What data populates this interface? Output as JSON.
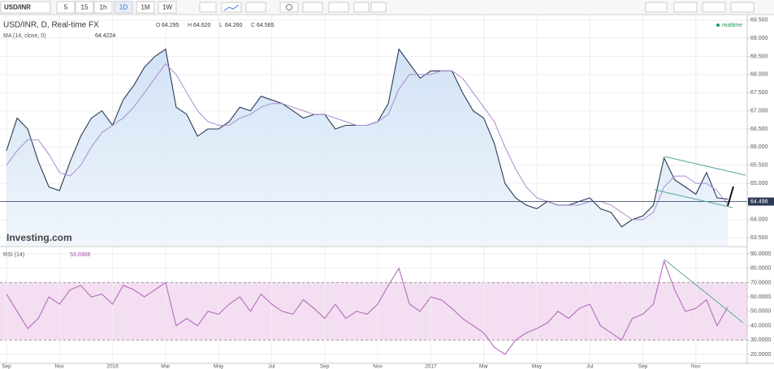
{
  "toolbar": {
    "symbol": "USD/INR",
    "intervals": [
      "5",
      "15",
      "1h",
      "1D",
      "1M",
      "1W"
    ],
    "active_interval": 3
  },
  "status": "realtime",
  "watermark": "Investing.com",
  "chart_data": [
    {
      "type": "line",
      "title": "USD/INR, D, Real-time FX",
      "ohlc": [
        {
          "label": "O",
          "value": 64.295,
          "value_label": "64.295"
        },
        {
          "label": "H",
          "value": 64.62,
          "value_label": "64.620"
        },
        {
          "label": "L",
          "value": 64.26,
          "value_label": "64.260"
        },
        {
          "label": "C",
          "value": 64.565,
          "value_label": "64.565"
        }
      ],
      "ylim": [
        63.28,
        69.63
      ],
      "yticks": [
        {
          "value": 63.5,
          "label": "63.500"
        },
        {
          "value": 64,
          "label": "64.000"
        },
        {
          "value": 64.5,
          "label": "64.500"
        },
        {
          "value": 65,
          "label": "65.000"
        },
        {
          "value": 65.5,
          "label": "65.500"
        },
        {
          "value": 66,
          "label": "66.000"
        },
        {
          "value": 66.5,
          "label": "66.500"
        },
        {
          "value": 67,
          "label": "67.000"
        },
        {
          "value": 67.5,
          "label": "67.500"
        },
        {
          "value": 68,
          "label": "68.000"
        },
        {
          "value": 68.5,
          "label": "68.500"
        },
        {
          "value": 69,
          "label": "69.000"
        },
        {
          "value": 69.5,
          "label": "69.500"
        }
      ],
      "grid": true,
      "price_line": 64.498,
      "series": [
        {
          "name": "USD/INR",
          "color": "#2b3a55",
          "area_color": "#d7e6f6",
          "values": [
            65.9,
            66.8,
            66.5,
            65.6,
            64.9,
            64.8,
            65.6,
            66.3,
            66.8,
            67.0,
            66.6,
            67.3,
            67.7,
            68.2,
            68.5,
            68.7,
            67.1,
            66.9,
            66.3,
            66.5,
            66.5,
            66.7,
            67.1,
            67.0,
            67.4,
            67.3,
            67.2,
            67.0,
            66.8,
            66.9,
            66.9,
            66.5,
            66.6,
            66.6,
            66.6,
            66.7,
            67.2,
            68.7,
            68.3,
            67.9,
            68.1,
            68.1,
            68.1,
            67.5,
            67.0,
            66.8,
            66.1,
            65.0,
            64.6,
            64.4,
            64.3,
            64.5,
            64.4,
            64.4,
            64.5,
            64.6,
            64.3,
            64.2,
            63.8,
            64.0,
            64.1,
            64.4,
            65.7,
            65.1,
            64.9,
            64.7,
            65.3,
            64.6,
            64.565
          ]
        },
        {
          "name": "MA (14, close, 0)",
          "color": "#a98bd0",
          "values": [
            65.5,
            65.9,
            66.2,
            66.2,
            65.8,
            65.3,
            65.2,
            65.5,
            66.0,
            66.4,
            66.6,
            66.8,
            67.1,
            67.5,
            67.9,
            68.3,
            68.0,
            67.5,
            67.0,
            66.7,
            66.6,
            66.6,
            66.8,
            66.9,
            67.1,
            67.2,
            67.2,
            67.1,
            67.0,
            66.9,
            66.9,
            66.8,
            66.7,
            66.6,
            66.6,
            66.7,
            66.9,
            67.6,
            68.0,
            68.0,
            68.0,
            68.1,
            68.1,
            67.9,
            67.5,
            67.1,
            66.7,
            66.0,
            65.4,
            64.9,
            64.6,
            64.5,
            64.4,
            64.4,
            64.4,
            64.5,
            64.5,
            64.4,
            64.2,
            64.0,
            64.0,
            64.2,
            64.9,
            65.2,
            65.2,
            65.0,
            65.0,
            64.8,
            64.4224
          ]
        }
      ]
    },
    {
      "type": "line",
      "title": "RSI (14)",
      "categories": [
        "Sep",
        null,
        null,
        null,
        null,
        "Nov",
        null,
        null,
        null,
        null,
        "2016",
        null,
        null,
        null,
        null,
        "Mar",
        null,
        null,
        null,
        null,
        "May",
        null,
        null,
        null,
        null,
        "Jul",
        null,
        null,
        null,
        null,
        "Sep",
        null,
        null,
        null,
        null,
        "Nov",
        null,
        null,
        null,
        null,
        "2017",
        null,
        null,
        null,
        null,
        "Mar",
        null,
        null,
        null,
        null,
        "May",
        null,
        null,
        null,
        null,
        "Jul",
        null,
        null,
        null,
        null,
        "Sep",
        null,
        null,
        null,
        null,
        "Nov",
        null,
        null,
        null
      ],
      "ylim": [
        13.8,
        94.5
      ],
      "yticks": [
        {
          "value": 20,
          "label": "20.0000"
        },
        {
          "value": 30,
          "label": "30.0000"
        },
        {
          "value": 40,
          "label": "40.0000"
        },
        {
          "value": 50,
          "label": "50.0000"
        },
        {
          "value": 60,
          "label": "60.0000"
        },
        {
          "value": 70,
          "label": "70.0000"
        },
        {
          "value": 80,
          "label": "80.0000"
        },
        {
          "value": 90,
          "label": "90.0000"
        }
      ],
      "band": [
        30,
        70
      ],
      "band_color": "#f4dff2",
      "grid": true,
      "series": [
        {
          "name": "RSI (14)",
          "color": "#b46bbd",
          "values": [
            62,
            50,
            38,
            45,
            60,
            55,
            65,
            68,
            60,
            62,
            55,
            68,
            65,
            60,
            65,
            70,
            40,
            45,
            40,
            50,
            48,
            55,
            60,
            50,
            62,
            55,
            50,
            48,
            58,
            52,
            45,
            55,
            45,
            50,
            48,
            55,
            68,
            80,
            55,
            50,
            60,
            58,
            52,
            45,
            40,
            35,
            25,
            20,
            30,
            35,
            38,
            42,
            50,
            45,
            52,
            55,
            40,
            35,
            30,
            45,
            48,
            55,
            85,
            65,
            50,
            52,
            58,
            40,
            53.0306
          ]
        }
      ]
    }
  ]
}
